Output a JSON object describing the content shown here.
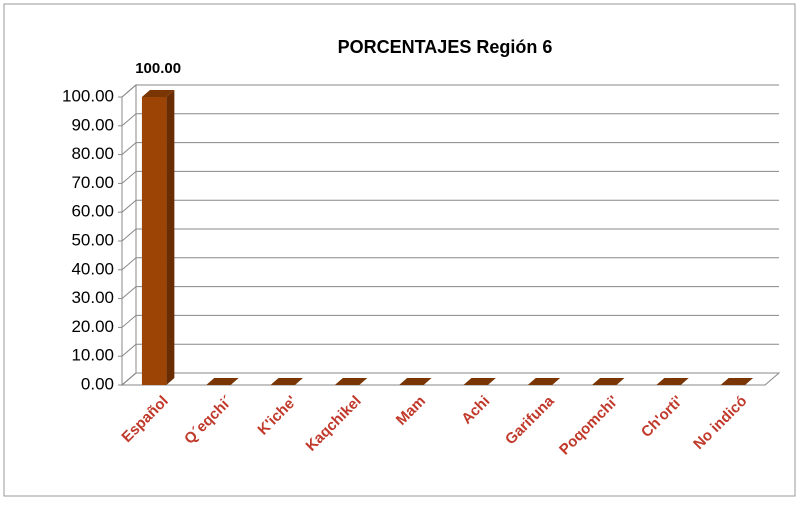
{
  "chart_data": {
    "type": "bar3d",
    "title": "PORCENTAJES Región 6",
    "categories": [
      "Español",
      "Q´eqchi´",
      "K'iche'",
      "Kaqchikel",
      "Mam",
      "Achi",
      "Garifuna",
      "Poqomchi'",
      "Ch'orti'",
      "No indicó"
    ],
    "values": [
      100,
      0,
      0,
      0,
      0,
      0,
      0,
      0,
      0,
      0
    ],
    "value_labels": [
      "100.00",
      null,
      null,
      null,
      null,
      null,
      null,
      null,
      null,
      null
    ],
    "color": "#9c4306",
    "ylim": [
      0,
      100
    ],
    "yticks": [
      {
        "value": 0,
        "label": "0.00"
      },
      {
        "value": 10,
        "label": "10.00"
      },
      {
        "value": 20,
        "label": "20.00"
      },
      {
        "value": 30,
        "label": "30.00"
      },
      {
        "value": 40,
        "label": "40.00"
      },
      {
        "value": 50,
        "label": "50.00"
      },
      {
        "value": 60,
        "label": "60.00"
      },
      {
        "value": 70,
        "label": "70.00"
      },
      {
        "value": 80,
        "label": "80.00"
      },
      {
        "value": 90,
        "label": "90.00"
      },
      {
        "value": 100,
        "label": "100.00"
      }
    ],
    "grid": true
  }
}
